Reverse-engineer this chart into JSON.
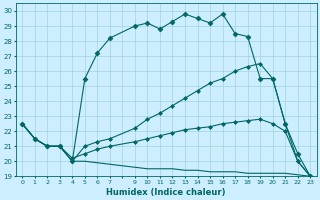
{
  "xlabel": "Humidex (Indice chaleur)",
  "background_color": "#cceeff",
  "line_color": "#006666",
  "grid_color": "#99cccc",
  "xlim": [
    -0.5,
    23.5
  ],
  "ylim": [
    19,
    30.5
  ],
  "yticks": [
    19,
    20,
    21,
    22,
    23,
    24,
    25,
    26,
    27,
    28,
    29,
    30
  ],
  "xtick_labels": [
    "0",
    "1",
    "2",
    "3",
    "4",
    "5",
    "6",
    "7",
    "",
    "9",
    "10",
    "11",
    "12",
    "13",
    "14",
    "15",
    "16",
    "17",
    "18",
    "19",
    "20",
    "21",
    "22",
    "23"
  ],
  "xtick_pos": [
    0,
    1,
    2,
    3,
    4,
    5,
    6,
    7,
    8,
    9,
    10,
    11,
    12,
    13,
    14,
    15,
    16,
    17,
    18,
    19,
    20,
    21,
    22,
    23
  ],
  "series": [
    {
      "x": [
        0,
        1,
        2,
        3,
        4,
        5,
        6,
        7,
        9,
        10,
        11,
        12,
        13,
        14,
        15,
        16,
        17,
        18,
        19,
        20,
        21,
        22,
        23
      ],
      "y": [
        22.5,
        21.5,
        21.0,
        21.0,
        20.0,
        25.5,
        27.2,
        28.2,
        29.0,
        29.2,
        28.8,
        29.3,
        29.8,
        29.5,
        29.2,
        29.8,
        28.5,
        28.3,
        25.5,
        25.5,
        22.5,
        20.5,
        19.0
      ],
      "marker": "D",
      "markersize": 2.5,
      "linewidth": 0.8
    },
    {
      "x": [
        0,
        1,
        2,
        3,
        4,
        5,
        6,
        7,
        9,
        10,
        11,
        12,
        13,
        14,
        15,
        16,
        17,
        18,
        19,
        20,
        21,
        22,
        23
      ],
      "y": [
        22.5,
        21.5,
        21.0,
        21.0,
        20.0,
        21.0,
        21.3,
        21.5,
        22.2,
        22.8,
        23.2,
        23.7,
        24.2,
        24.7,
        25.2,
        25.5,
        26.0,
        26.3,
        26.5,
        25.5,
        22.5,
        20.0,
        19.0
      ],
      "marker": "D",
      "markersize": 2.0,
      "linewidth": 0.8
    },
    {
      "x": [
        0,
        1,
        2,
        3,
        4,
        5,
        6,
        7,
        9,
        10,
        11,
        12,
        13,
        14,
        15,
        16,
        17,
        18,
        19,
        20,
        21,
        22,
        23
      ],
      "y": [
        22.5,
        21.5,
        21.0,
        21.0,
        20.2,
        20.5,
        20.8,
        21.0,
        21.3,
        21.5,
        21.7,
        21.9,
        22.1,
        22.2,
        22.3,
        22.5,
        22.6,
        22.7,
        22.8,
        22.5,
        22.0,
        20.0,
        19.0
      ],
      "marker": "D",
      "markersize": 2.0,
      "linewidth": 0.8
    },
    {
      "x": [
        0,
        1,
        2,
        3,
        4,
        5,
        6,
        7,
        9,
        10,
        11,
        12,
        13,
        14,
        15,
        16,
        17,
        18,
        19,
        20,
        21,
        22,
        23
      ],
      "y": [
        22.5,
        21.5,
        21.0,
        21.0,
        20.0,
        20.0,
        19.9,
        19.8,
        19.6,
        19.5,
        19.5,
        19.5,
        19.4,
        19.4,
        19.3,
        19.3,
        19.3,
        19.2,
        19.2,
        19.2,
        19.2,
        19.1,
        19.0
      ],
      "marker": null,
      "markersize": 0,
      "linewidth": 0.8
    }
  ]
}
